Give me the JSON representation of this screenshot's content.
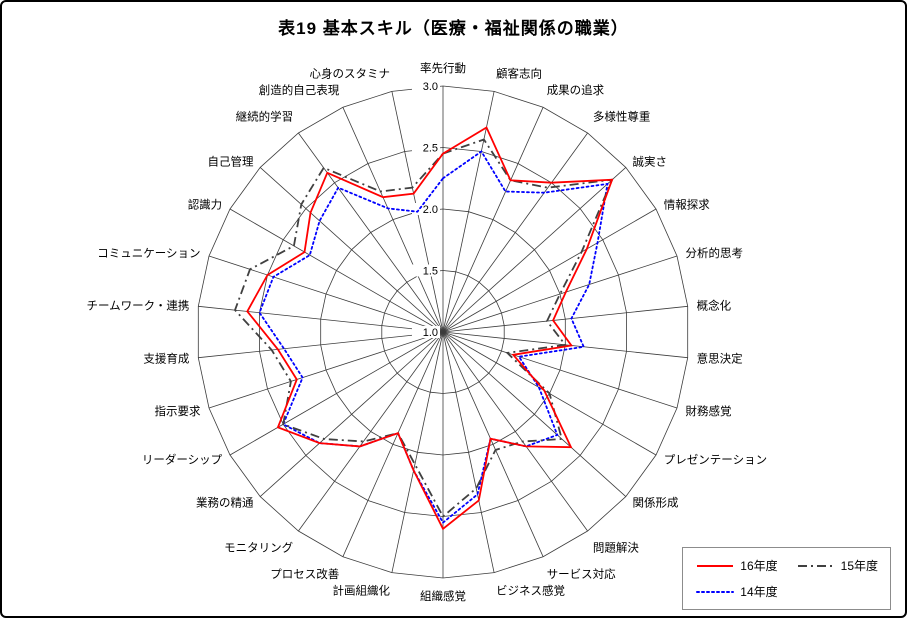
{
  "page": {
    "background": "#ffffff",
    "border_color": "#000000"
  },
  "chart_data": {
    "type": "radar",
    "title": "表19 基本スキル（医療・福祉関係の職業）",
    "radial_axis": {
      "min": 1.0,
      "max": 3.0,
      "tick_interval": 0.5,
      "ticks": [
        {
          "label": "3.0",
          "value": 3.0
        },
        {
          "label": "2.5",
          "value": 2.5
        },
        {
          "label": "2.0",
          "value": 2.0
        },
        {
          "label": "1.5",
          "value": 1.5
        },
        {
          "label": "1.0",
          "value": 1.0
        }
      ]
    },
    "grid": {
      "rings": [
        1.5,
        2.0,
        2.5,
        3.0
      ],
      "line_color": "#3c3c3c"
    },
    "categories": [
      "率先行動",
      "顧客志向",
      "成果の追求",
      "多様性尊重",
      "誠実さ",
      "情報探求",
      "分析的思考",
      "概念化",
      "意思決定",
      "財務感覚",
      "プレゼンテーション",
      "関係形成",
      "問題解決",
      "サービス対応",
      "ビジネス感覚",
      "組織感覚",
      "計画組織化",
      "プロセス改善",
      "モニタリング",
      "業務の精通",
      "リーダーシップ",
      "指示要求",
      "支援育成",
      "チームワーク・連携",
      "コミュニケーション",
      "認識力",
      "自己管理",
      "継続的学習",
      "創造的自己表現",
      "心身のスタミナ"
    ],
    "series": [
      {
        "name": "16年度",
        "color": "#ff0000",
        "style": "solid",
        "values": [
          2.45,
          2.7,
          2.35,
          2.5,
          2.85,
          2.35,
          2.05,
          1.9,
          2.05,
          1.6,
          1.95,
          2.4,
          2.15,
          1.95,
          2.4,
          2.6,
          2.15,
          1.9,
          2.15,
          2.35,
          2.55,
          2.25,
          2.35,
          2.6,
          2.5,
          2.3,
          2.45,
          2.6,
          2.2,
          2.15
        ]
      },
      {
        "name": "15年度",
        "color": "#404040",
        "style": "dash-dot",
        "values": [
          2.45,
          2.6,
          2.35,
          2.45,
          2.85,
          2.3,
          2.0,
          1.85,
          2.0,
          1.55,
          2.0,
          2.3,
          2.1,
          2.05,
          2.3,
          2.5,
          2.1,
          1.9,
          2.1,
          2.3,
          2.5,
          2.3,
          2.4,
          2.7,
          2.65,
          2.4,
          2.55,
          2.65,
          2.25,
          2.2
        ]
      },
      {
        "name": "14年度",
        "color": "#0000ff",
        "style": "dotted",
        "values": [
          2.25,
          2.5,
          2.25,
          2.4,
          2.8,
          2.45,
          2.25,
          2.05,
          2.15,
          1.65,
          1.9,
          2.25,
          2.15,
          1.95,
          2.35,
          2.55,
          2.15,
          1.9,
          2.15,
          2.35,
          2.5,
          2.2,
          2.3,
          2.5,
          2.45,
          2.25,
          2.35,
          2.45,
          2.1,
          2.0
        ]
      }
    ],
    "legend_position": "bottom-right"
  }
}
